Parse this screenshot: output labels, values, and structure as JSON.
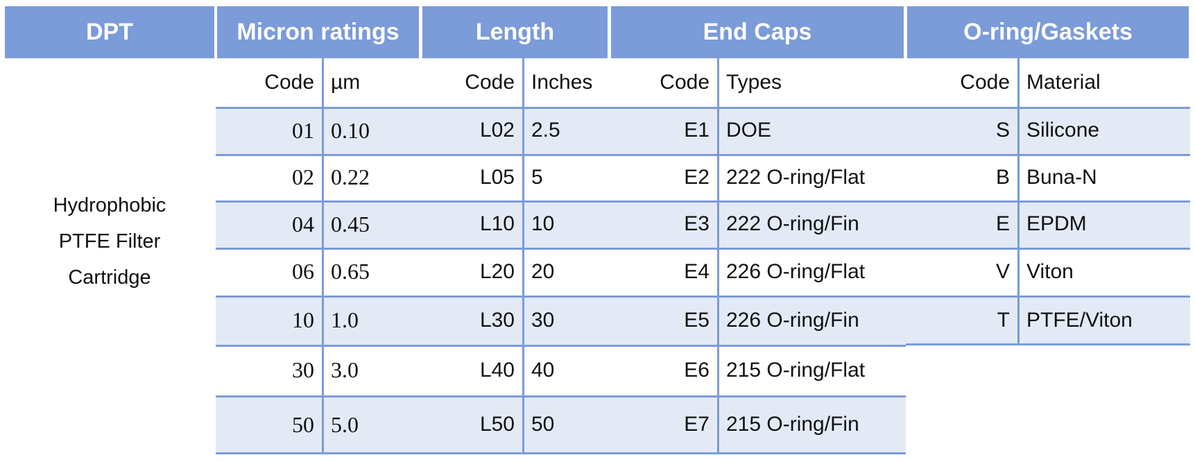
{
  "header": {
    "columns": [
      "DPT",
      "Micron ratings",
      "Length",
      "End Caps",
      "O-ring/Gaskets"
    ]
  },
  "product": {
    "lines": [
      "Hydrophobic",
      "PTFE Filter",
      "Cartridge"
    ]
  },
  "groups": [
    {
      "subheaders": [
        "Code",
        "µm"
      ],
      "rows": [
        [
          "01",
          "0.10"
        ],
        [
          "02",
          "0.22"
        ],
        [
          "04",
          "0.45"
        ],
        [
          "06",
          "0.65"
        ],
        [
          "10",
          "1.0"
        ],
        [
          "30",
          "3.0"
        ],
        [
          "50",
          "5.0"
        ]
      ]
    },
    {
      "subheaders": [
        "Code",
        "Inches"
      ],
      "rows": [
        [
          "L02",
          "2.5"
        ],
        [
          "L05",
          "5"
        ],
        [
          "L10",
          "10"
        ],
        [
          "L20",
          "20"
        ],
        [
          "L30",
          "30"
        ],
        [
          "L40",
          "40"
        ],
        [
          "L50",
          "50"
        ]
      ]
    },
    {
      "subheaders": [
        "Code",
        "Types"
      ],
      "rows": [
        [
          "E1",
          "DOE"
        ],
        [
          "E2",
          "222 O-ring/Flat"
        ],
        [
          "E3",
          "222 O-ring/Fin"
        ],
        [
          "E4",
          "226 O-ring/Flat"
        ],
        [
          "E5",
          "226 O-ring/Fin"
        ],
        [
          "E6",
          "215 O-ring/Flat"
        ],
        [
          "E7",
          "215 O-ring/Fin"
        ]
      ]
    },
    {
      "subheaders": [
        "Code",
        "Material"
      ],
      "rows": [
        [
          "S",
          "Silicone"
        ],
        [
          "B",
          "Buna-N"
        ],
        [
          "E",
          "EPDM"
        ],
        [
          "V",
          "Viton"
        ],
        [
          "T",
          "PTFE/Viton"
        ]
      ]
    }
  ]
}
